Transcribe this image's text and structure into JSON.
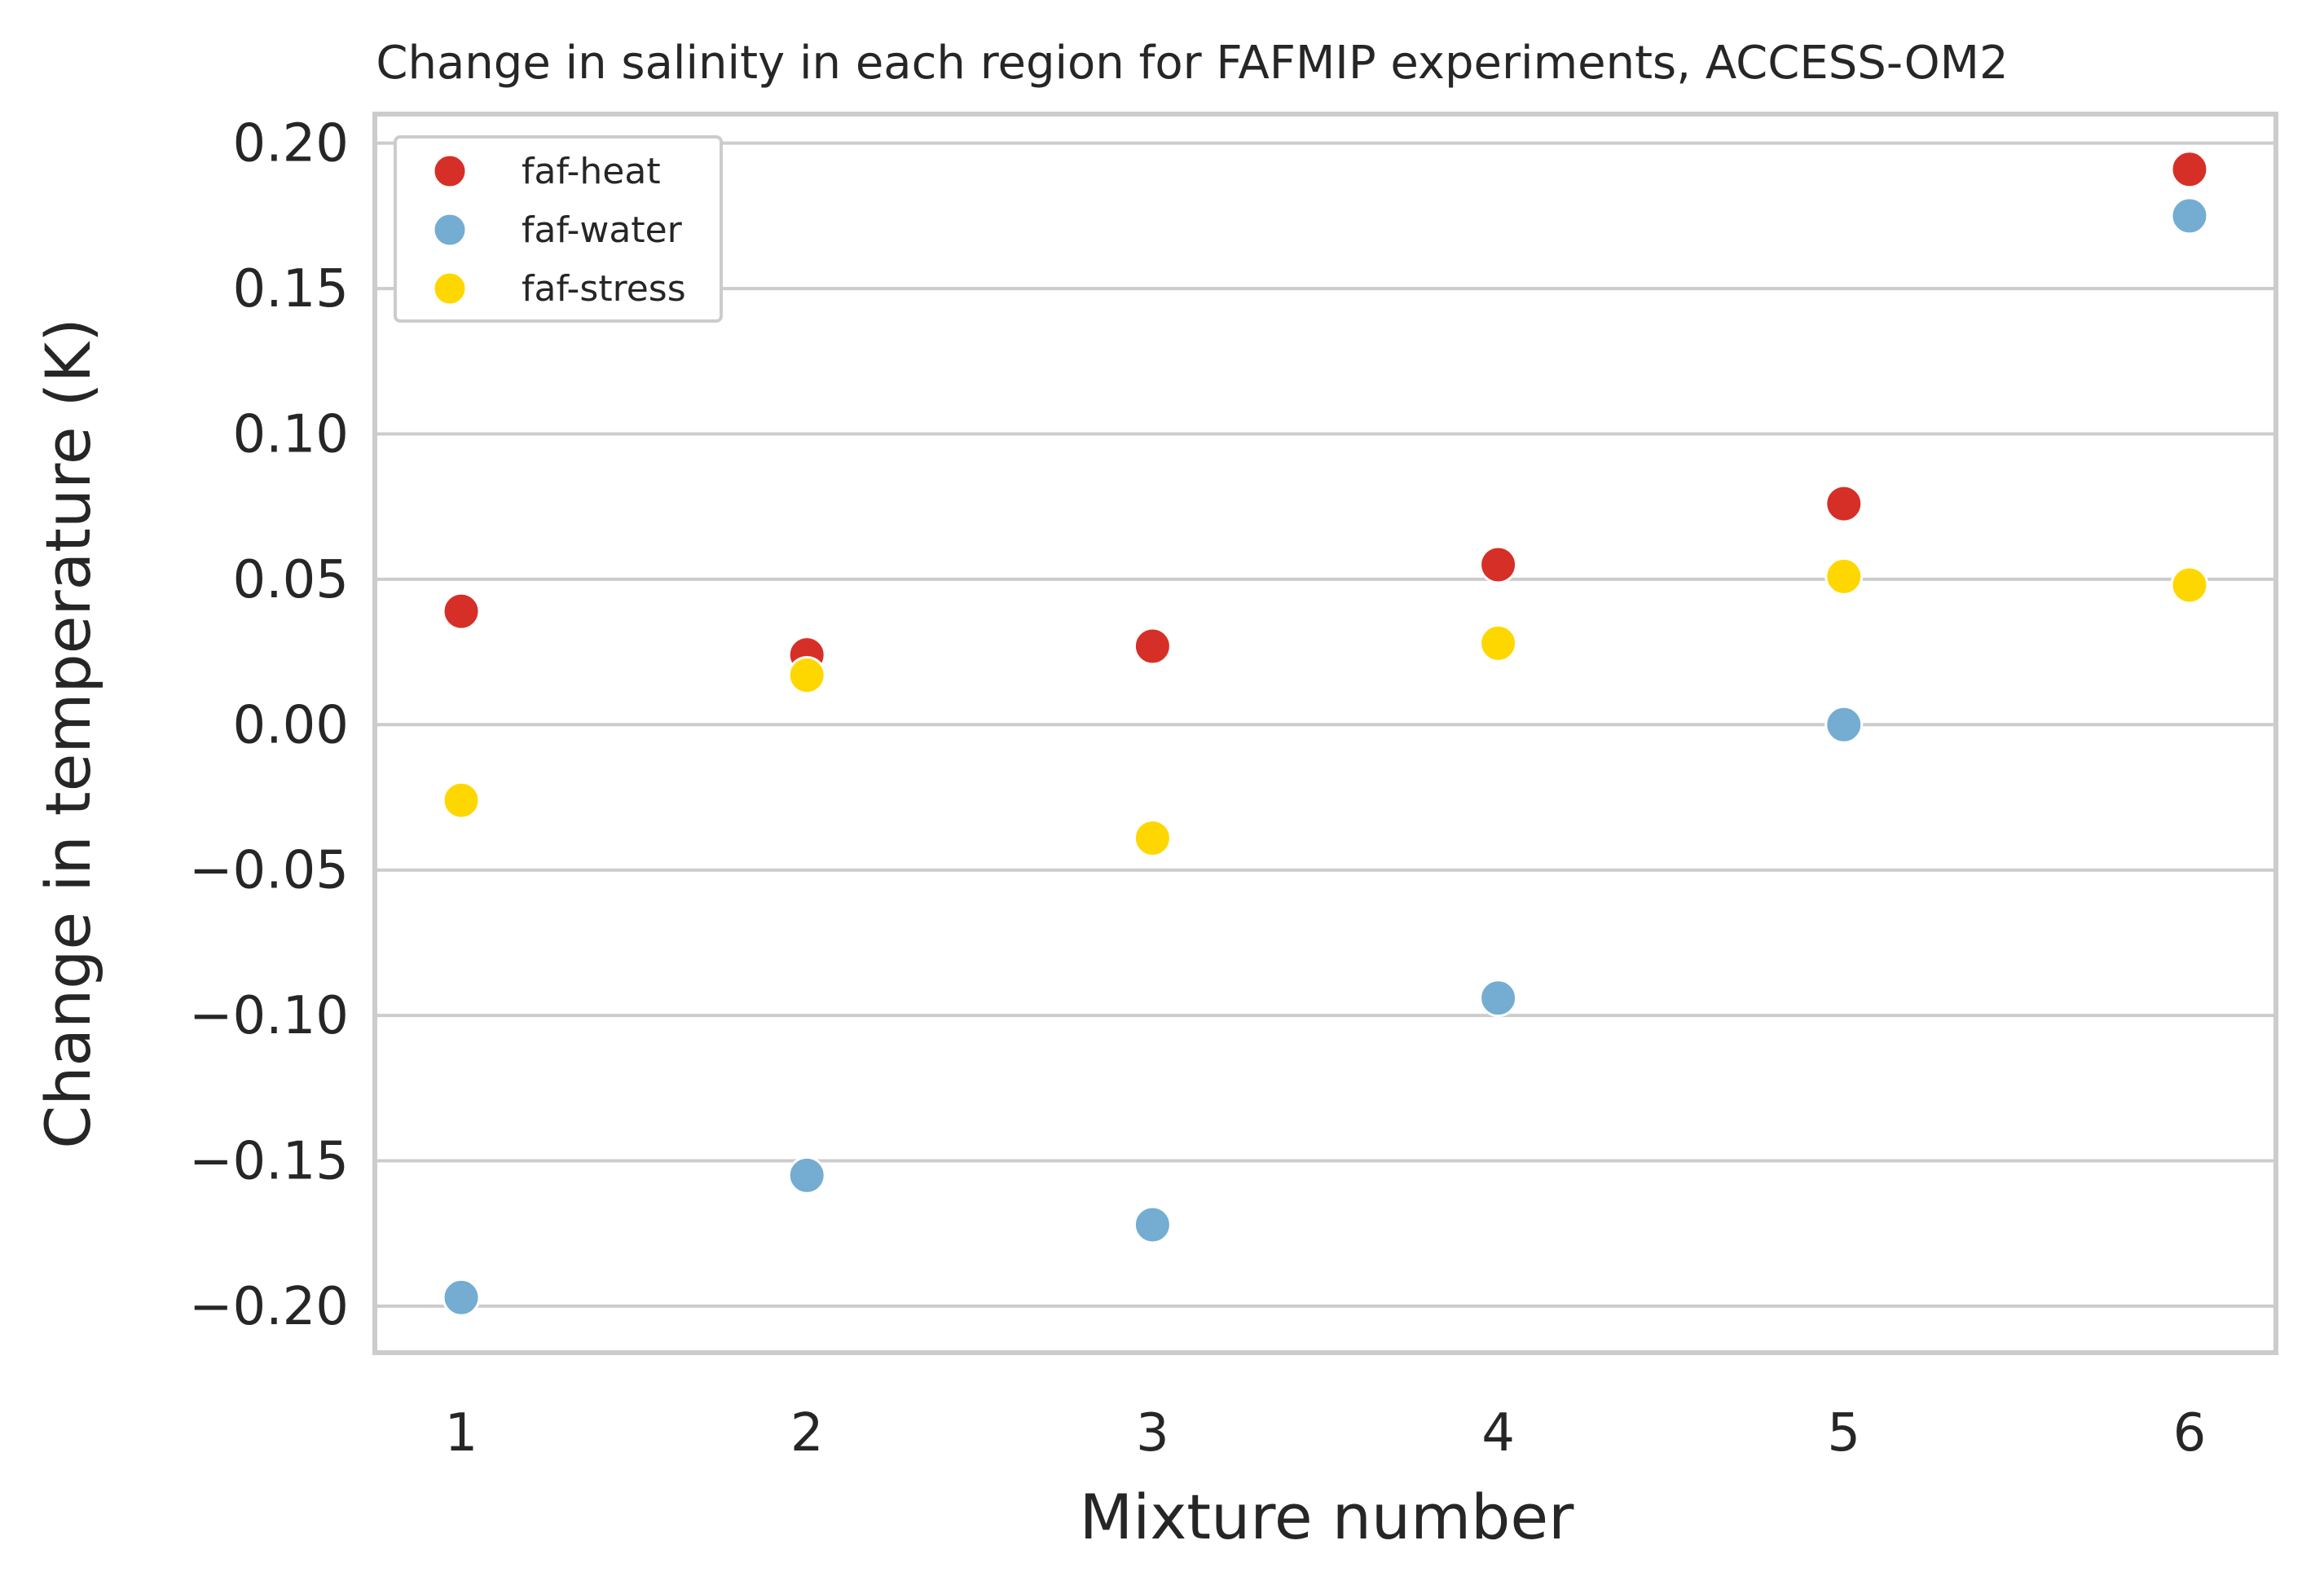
{
  "chart_data": {
    "type": "scatter",
    "title": "Change in salinity in each region for FAFMIP experiments, ACCESS-OM2",
    "xlabel": "Mixture number",
    "ylabel": "Change in temperature (K)",
    "x": [
      1,
      2,
      3,
      4,
      5,
      6
    ],
    "xticks": [
      "1",
      "2",
      "3",
      "4",
      "5",
      "6"
    ],
    "xlim": [
      0.75,
      6.25
    ],
    "yticks": [
      "0.20",
      "0.15",
      "0.10",
      "0.05",
      "0.00",
      "−0.05",
      "−0.10",
      "−0.15",
      "−0.20"
    ],
    "ytick_values": [
      0.2,
      0.15,
      0.1,
      0.05,
      0.0,
      -0.05,
      -0.1,
      -0.15,
      -0.2
    ],
    "ylim": [
      -0.216,
      0.21
    ],
    "grid": "horizontal",
    "legend_position": "top-left",
    "series": [
      {
        "name": "faf-heat",
        "color": "#d62f27",
        "values": [
          0.039,
          0.024,
          0.027,
          0.055,
          0.076,
          0.191
        ]
      },
      {
        "name": "faf-water",
        "color": "#74add1",
        "values": [
          -0.197,
          -0.155,
          -0.172,
          -0.094,
          0.0,
          0.175
        ]
      },
      {
        "name": "faf-stress",
        "color": "#ffd700",
        "values": [
          -0.026,
          0.017,
          -0.039,
          0.028,
          0.051,
          0.048
        ]
      }
    ]
  }
}
